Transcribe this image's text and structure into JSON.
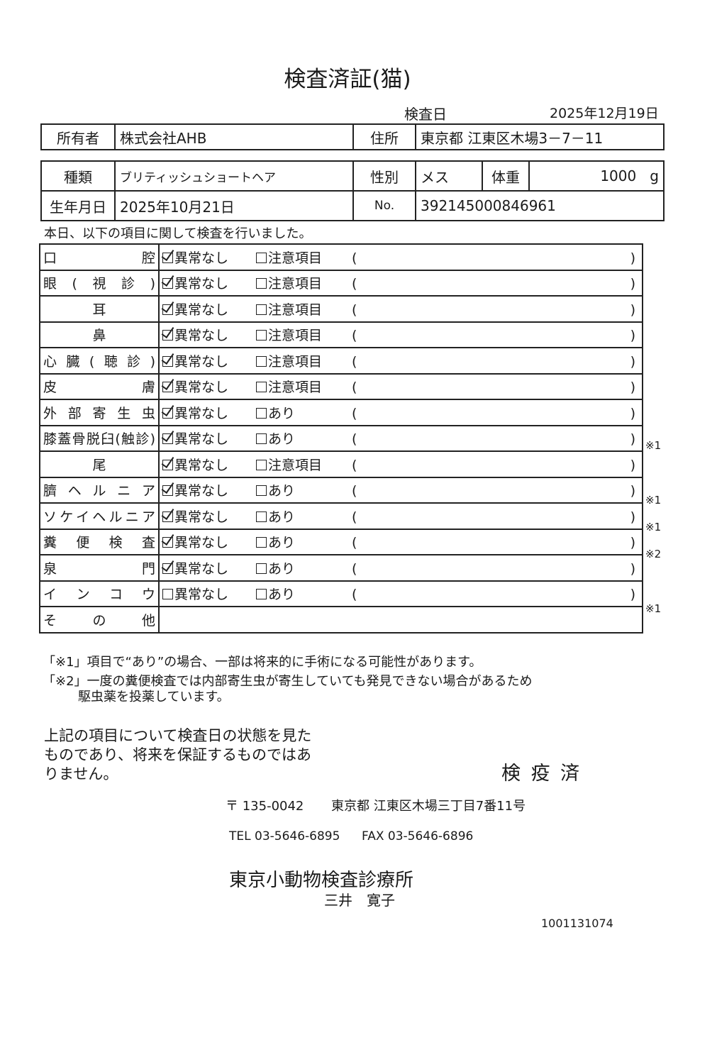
{
  "title": "検査済証(猫)",
  "exam_date_label": "検査日",
  "exam_date": "2025年12月19日",
  "owner": {
    "label": "所有者",
    "value": "株式会社AHB"
  },
  "address": {
    "label": "住所",
    "value": "東京都 江東区木場3－7－11"
  },
  "breed": {
    "label": "種類",
    "value": "ブリティッシュショートヘア"
  },
  "sex": {
    "label": "性別",
    "value": "メス"
  },
  "weight": {
    "label": "体重",
    "value": "1000",
    "unit": "g"
  },
  "birth": {
    "label": "生年月日",
    "value": "2025年10月21日"
  },
  "number": {
    "label": "No.",
    "value": "392145000846961"
  },
  "intro": "本日、以下の項目に関して検査を行いました。",
  "normal_label": "異常なし",
  "paren_open": "(",
  "paren_close": ")",
  "items": [
    {
      "label": "口腔",
      "normal": true,
      "alt": "注意項目",
      "note": ""
    },
    {
      "label": "眼(視診)",
      "normal": true,
      "alt": "注意項目",
      "note": ""
    },
    {
      "label": "耳",
      "normal": true,
      "alt": "注意項目",
      "note": "",
      "center": true
    },
    {
      "label": "鼻",
      "normal": true,
      "alt": "注意項目",
      "note": "",
      "center": true
    },
    {
      "label": "心臓(聴診)",
      "normal": true,
      "alt": "注意項目",
      "note": ""
    },
    {
      "label": "皮膚",
      "normal": true,
      "alt": "注意項目",
      "note": ""
    },
    {
      "label": "外部寄生虫",
      "normal": true,
      "alt": "あり",
      "note": ""
    },
    {
      "label": "膝蓋骨脱臼(触診)",
      "normal": true,
      "alt": "あり",
      "note": "※1"
    },
    {
      "label": "尾",
      "normal": true,
      "alt": "注意項目",
      "note": "",
      "center": true
    },
    {
      "label": "臍ヘルニア",
      "normal": true,
      "alt": "あり",
      "note": "※1"
    },
    {
      "label": "ソケイヘルニア",
      "normal": true,
      "alt": "あり",
      "note": "※1"
    },
    {
      "label": "糞便検査",
      "normal": true,
      "alt": "あり",
      "note": "※2"
    },
    {
      "label": "泉門",
      "normal": true,
      "alt": "あり",
      "note": ""
    },
    {
      "label": "インコウ",
      "normal": false,
      "alt": "あり",
      "note": "※1"
    }
  ],
  "other_label": "その他",
  "footnotes": [
    "「※1」項目で“あり”の場合、一部は将来的に手術になる可能性があります。",
    "「※2」一度の糞便検査では内部寄生虫が寄生していても発見できない場合があるため",
    "駆虫薬を投薬しています。"
  ],
  "disclaimer": "上記の項目について検査日の状態を見たものであり、将来を保証するものではありません。",
  "stamp": "検 疫 済",
  "postal": "〒 135-0042",
  "clinic_address": "東京都 江東区木場三丁目7番11号",
  "tel": "TEL 03-5646-6895",
  "fax": "FAX 03-5646-6896",
  "clinic_name": "東京小動物検査診療所",
  "vet_name": "三井　寛子",
  "doc_code": "1001131074"
}
